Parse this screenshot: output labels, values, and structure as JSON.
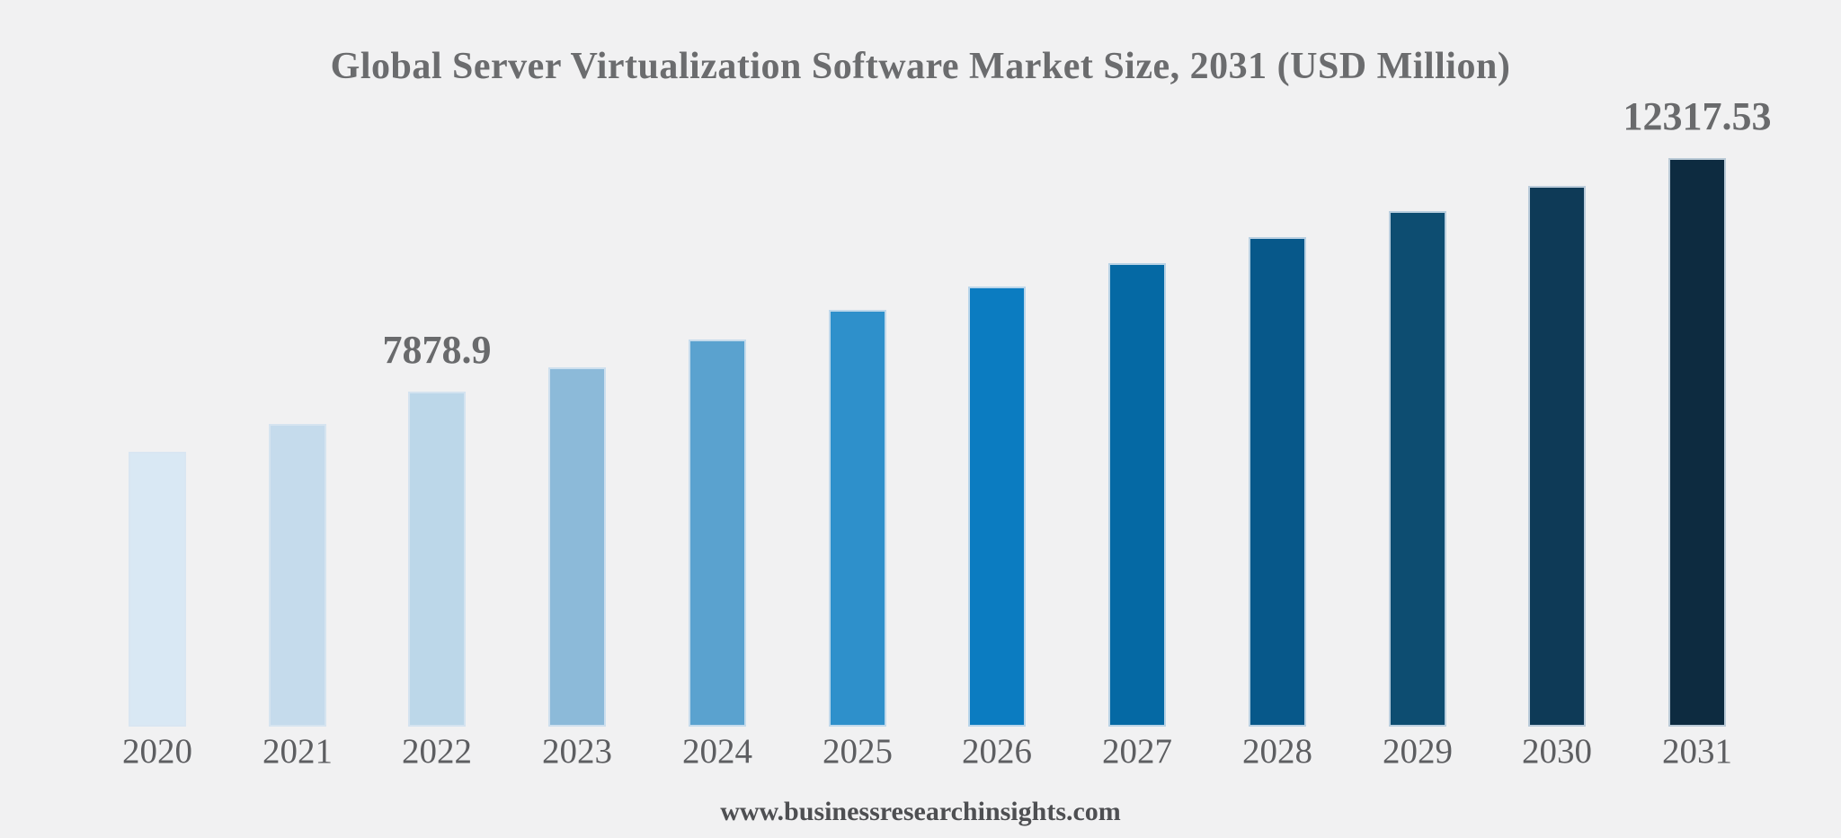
{
  "window": {
    "background_color": "#f1f1f2"
  },
  "header": {
    "title": "Global Server Virtualization Software Market Size, 2031 (USD Million)"
  },
  "footer": {
    "website": "www.businessresearchinsights.com"
  },
  "chart_data": {
    "type": "bar",
    "title": "Global Server Virtualization Software Market Size, 2031 (USD Million)",
    "value_unit": "USD Million",
    "categories": [
      "2020",
      "2021",
      "2022",
      "2023",
      "2024",
      "2025",
      "2026",
      "2027",
      "2028",
      "2029",
      "2030",
      "2031"
    ],
    "values": [
      6740,
      7260,
      7878.9,
      8340,
      8870,
      9430,
      9880,
      10320,
      10820,
      11310,
      11790,
      12317.53
    ],
    "data_labels": [
      "",
      "",
      "7878.9",
      "",
      "",
      "",
      "",
      "",
      "",
      "",
      "",
      "12317.53"
    ],
    "bar_colors": [
      "#d9e8f4",
      "#c5dbec",
      "#bcd7e9",
      "#8cbad9",
      "#5aa2cf",
      "#2e90cb",
      "#0b7cc1",
      "#0569a4",
      "#07588a",
      "#0d4d71",
      "#0e3a57",
      "#0d2b40"
    ],
    "xlabel": "",
    "ylabel": "",
    "ylim_implied": [
      1512,
      12317.53
    ],
    "grid": false,
    "axes_visible": false,
    "legend_position": "none",
    "title_color": "#6b6c6e",
    "data_label_color": "#696a6c",
    "tick_label_color": "#5d5e61",
    "watermark_color": "#4e4f52"
  }
}
